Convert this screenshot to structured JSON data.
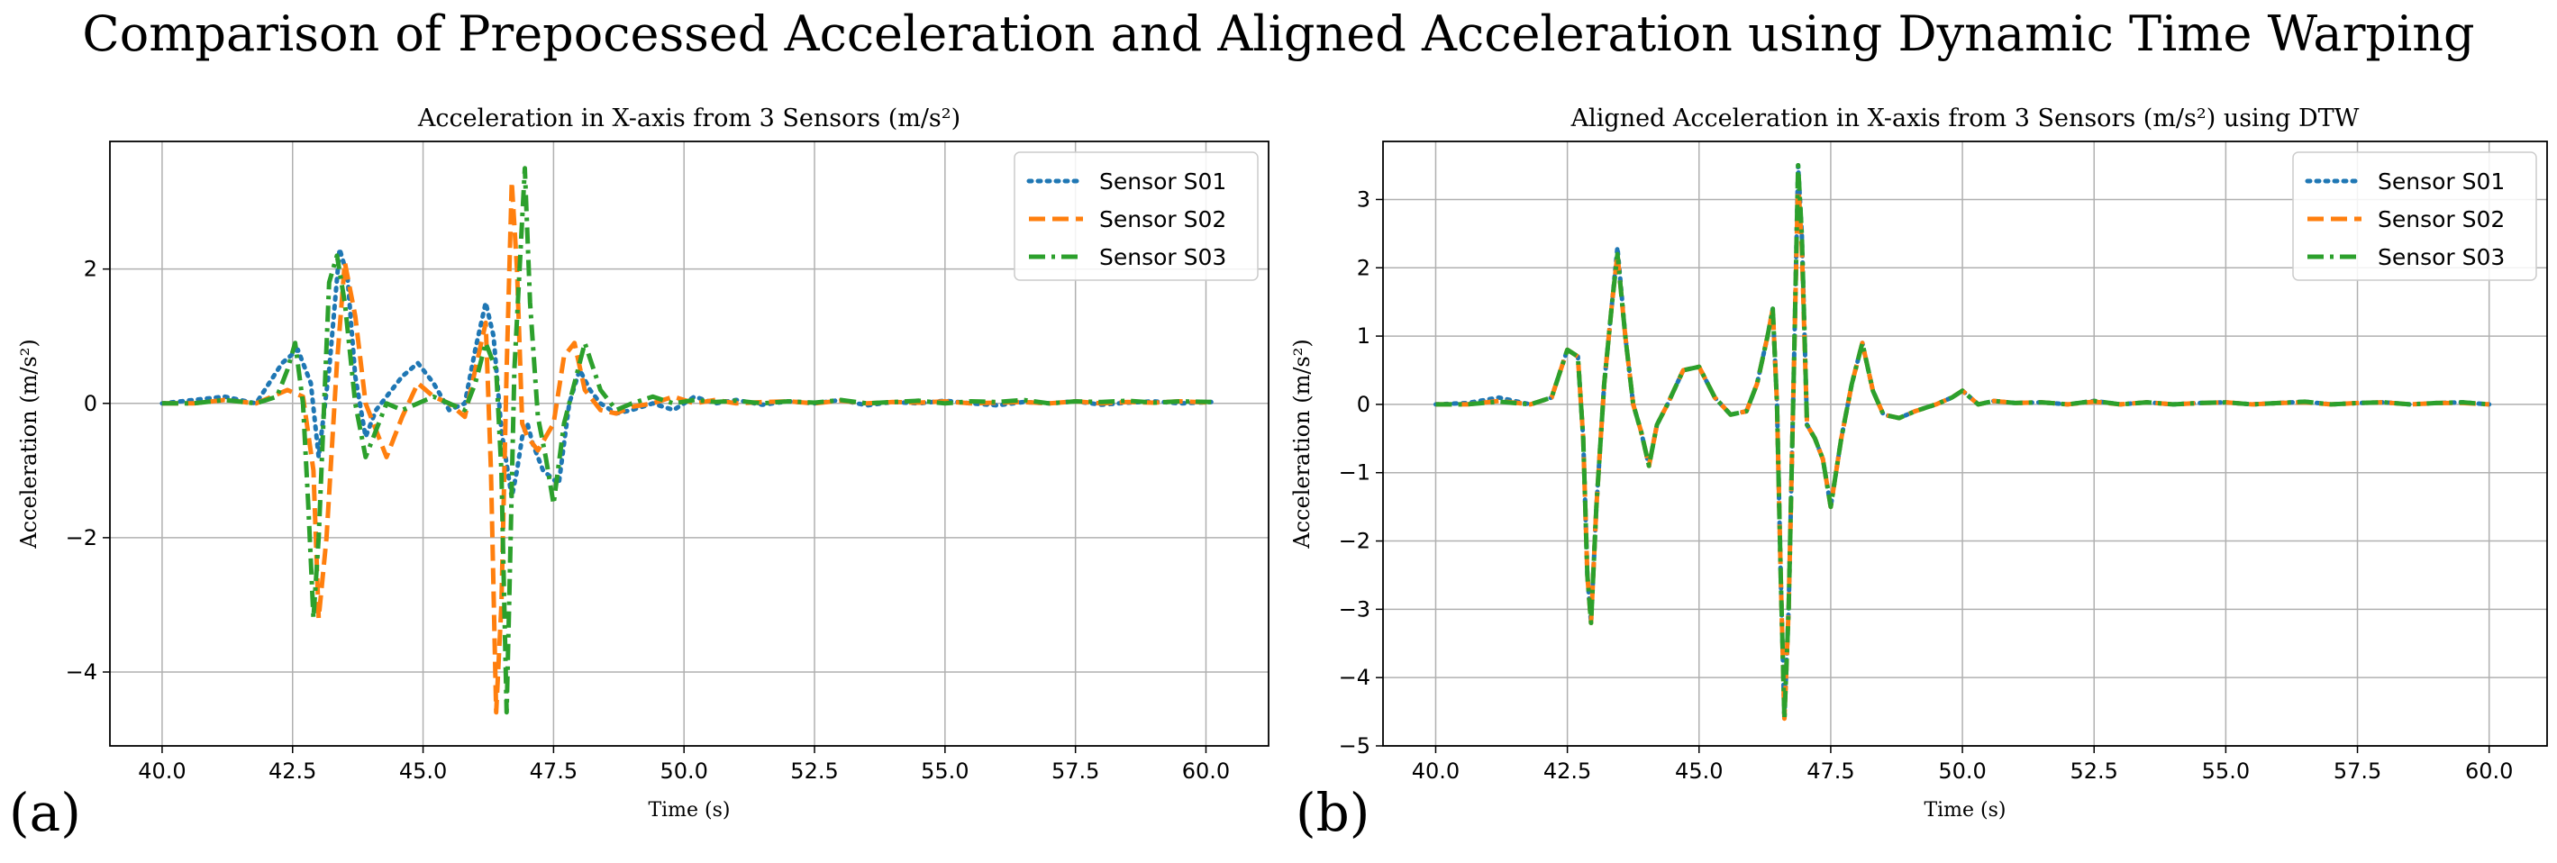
{
  "figure_title": "Comparison of Prepocessed Acceleration and Aligned Acceleration using Dynamic Time Warping",
  "panel_labels": [
    "(a)",
    "(b)"
  ],
  "colors": {
    "S01": "#1f77b4",
    "S02": "#ff7f0e",
    "S03": "#2ca02c",
    "grid": "#b0b0b0"
  },
  "chart_data": [
    {
      "type": "line",
      "title": "Acceleration in X-axis from 3 Sensors (m/s²)",
      "xlabel": "Time (s)",
      "ylabel": "Acceleration (m/s²)",
      "xlim": [
        39.0,
        61.2
      ],
      "ylim": [
        -5.1,
        3.9
      ],
      "xticks": [
        40.0,
        42.5,
        45.0,
        47.5,
        50.0,
        52.5,
        55.0,
        57.5,
        60.0
      ],
      "xtick_labels": [
        "40.0",
        "42.5",
        "45.0",
        "47.5",
        "50.0",
        "52.5",
        "55.0",
        "57.5",
        "60.0"
      ],
      "yticks": [
        -4,
        -2,
        0,
        2
      ],
      "ytick_labels": [
        "−4",
        "−2",
        "0",
        "2"
      ],
      "grid": true,
      "legend_position": "top-right",
      "series": [
        {
          "name": "Sensor S01",
          "style": "dotted",
          "color_key": "S01",
          "x": [
            40.0,
            40.6,
            41.2,
            41.8,
            42.3,
            42.6,
            42.85,
            43.0,
            43.2,
            43.4,
            43.55,
            43.7,
            43.9,
            44.1,
            44.3,
            44.6,
            44.9,
            45.2,
            45.5,
            45.8,
            46.0,
            46.2,
            46.35,
            46.5,
            46.6,
            46.7,
            46.8,
            46.9,
            47.0,
            47.1,
            47.3,
            47.6,
            47.8,
            48.0,
            48.2,
            48.4,
            48.7,
            49.0,
            49.4,
            49.8,
            50.2,
            50.6,
            51.0,
            51.5,
            52.0,
            52.5,
            53.0,
            53.5,
            54.0,
            54.5,
            55.0,
            55.5,
            56.0,
            56.5,
            57.0,
            57.5,
            58.0,
            58.5,
            59.0,
            59.5,
            60.1
          ],
          "values": [
            0.0,
            0.05,
            0.1,
            0.0,
            0.6,
            0.8,
            0.3,
            -0.8,
            0.5,
            2.3,
            1.9,
            0.4,
            -0.5,
            -0.1,
            0.1,
            0.4,
            0.6,
            0.3,
            -0.1,
            0.0,
            0.8,
            1.5,
            1.0,
            -0.4,
            -0.9,
            -1.4,
            -1.0,
            -0.5,
            -0.3,
            -0.6,
            -1.0,
            -1.2,
            0.0,
            0.5,
            0.2,
            0.0,
            -0.15,
            -0.1,
            0.0,
            -0.1,
            0.1,
            0.0,
            0.05,
            -0.02,
            0.03,
            0.0,
            0.05,
            -0.03,
            0.02,
            0.0,
            0.04,
            0.0,
            -0.03,
            0.02,
            0.0,
            0.03,
            -0.02,
            0.01,
            0.03,
            0.0,
            0.02
          ]
        },
        {
          "name": "Sensor S02",
          "style": "dashed",
          "color_key": "S02",
          "x": [
            40.0,
            40.6,
            41.2,
            41.8,
            42.4,
            42.7,
            42.9,
            43.0,
            43.15,
            43.35,
            43.5,
            43.7,
            43.9,
            44.1,
            44.3,
            44.6,
            44.9,
            45.2,
            45.5,
            45.8,
            46.0,
            46.2,
            46.3,
            46.4,
            46.5,
            46.6,
            46.7,
            46.8,
            46.9,
            47.0,
            47.2,
            47.5,
            47.7,
            47.9,
            48.1,
            48.4,
            48.7,
            49.0,
            49.4,
            49.8,
            50.2,
            50.6,
            51.0,
            51.5,
            52.0,
            52.5,
            53.0,
            53.5,
            54.0,
            54.5,
            55.0,
            55.5,
            56.0,
            56.5,
            57.0,
            57.5,
            58.0,
            58.5,
            59.0,
            59.5,
            60.1
          ],
          "values": [
            0.0,
            0.0,
            0.05,
            0.0,
            0.2,
            0.1,
            -1.0,
            -3.2,
            -2.0,
            0.6,
            2.1,
            1.3,
            0.0,
            -0.4,
            -0.8,
            -0.2,
            0.3,
            0.1,
            0.0,
            -0.2,
            0.5,
            1.2,
            -1.0,
            -4.6,
            -3.0,
            0.5,
            3.3,
            2.0,
            -0.3,
            -0.5,
            -0.7,
            -0.3,
            0.7,
            0.9,
            0.2,
            -0.1,
            -0.15,
            -0.05,
            0.0,
            0.1,
            0.0,
            0.05,
            0.0,
            0.02,
            0.03,
            0.0,
            0.04,
            0.0,
            0.02,
            0.01,
            0.03,
            0.0,
            0.01,
            0.02,
            0.0,
            0.03,
            0.0,
            0.02,
            0.01,
            0.03,
            0.01
          ]
        },
        {
          "name": "Sensor S03",
          "style": "dashdot",
          "color_key": "S03",
          "x": [
            40.0,
            40.6,
            41.2,
            41.8,
            42.2,
            42.4,
            42.55,
            42.7,
            42.8,
            42.9,
            43.0,
            43.2,
            43.35,
            43.5,
            43.7,
            43.9,
            44.1,
            44.3,
            44.6,
            44.9,
            45.2,
            45.5,
            45.8,
            46.0,
            46.2,
            46.4,
            46.5,
            46.6,
            46.65,
            46.75,
            46.85,
            46.95,
            47.05,
            47.2,
            47.35,
            47.5,
            47.7,
            47.9,
            48.1,
            48.4,
            48.7,
            49.0,
            49.4,
            49.8,
            50.2,
            50.6,
            51.0,
            51.5,
            52.0,
            52.5,
            53.0,
            53.5,
            54.0,
            54.5,
            55.0,
            55.5,
            56.0,
            56.5,
            57.0,
            57.5,
            58.0,
            58.5,
            59.0,
            59.5,
            60.1
          ],
          "values": [
            0.0,
            0.0,
            0.05,
            0.0,
            0.1,
            0.5,
            0.9,
            0.0,
            -1.5,
            -3.2,
            -2.0,
            1.8,
            2.2,
            1.5,
            0.0,
            -0.8,
            -0.4,
            0.0,
            -0.1,
            0.0,
            0.1,
            0.0,
            -0.1,
            0.3,
            0.9,
            0.5,
            -1.0,
            -4.6,
            -3.0,
            0.5,
            2.0,
            3.5,
            1.5,
            -0.2,
            -0.8,
            -1.5,
            -0.3,
            0.3,
            0.9,
            0.2,
            -0.1,
            0.0,
            0.1,
            0.0,
            0.05,
            0.02,
            0.04,
            0.0,
            0.03,
            0.01,
            0.05,
            0.0,
            0.02,
            0.04,
            0.0,
            0.03,
            0.02,
            0.05,
            0.0,
            0.03,
            0.02,
            0.04,
            0.01,
            0.03,
            0.02
          ]
        }
      ]
    },
    {
      "type": "line",
      "title": "Aligned Acceleration in X-axis from 3 Sensors (m/s²) using DTW",
      "xlabel": "Time (s)",
      "ylabel": "Acceleration (m/s²)",
      "xlim": [
        39.0,
        61.1
      ],
      "ylim": [
        -5.0,
        3.85
      ],
      "xticks": [
        40.0,
        42.5,
        45.0,
        47.5,
        50.0,
        52.5,
        55.0,
        57.5,
        60.0
      ],
      "xtick_labels": [
        "40.0",
        "42.5",
        "45.0",
        "47.5",
        "50.0",
        "52.5",
        "55.0",
        "57.5",
        "60.0"
      ],
      "yticks": [
        -5,
        -4,
        -3,
        -2,
        -1,
        0,
        1,
        2,
        3
      ],
      "ytick_labels": [
        "−5",
        "−4",
        "−3",
        "−2",
        "−1",
        "0",
        "1",
        "2",
        "3"
      ],
      "grid": true,
      "legend_position": "top-right",
      "series": [
        {
          "name": "Sensor S01",
          "style": "dotted",
          "color_key": "S01",
          "x": [
            40.0,
            40.6,
            41.2,
            41.8,
            42.2,
            42.5,
            42.7,
            42.8,
            42.88,
            42.95,
            43.05,
            43.2,
            43.35,
            43.45,
            43.6,
            43.75,
            43.9,
            44.05,
            44.2,
            44.4,
            44.7,
            45.0,
            45.3,
            45.6,
            45.9,
            46.1,
            46.3,
            46.4,
            46.48,
            46.55,
            46.62,
            46.7,
            46.8,
            46.88,
            46.95,
            47.05,
            47.2,
            47.35,
            47.5,
            47.7,
            47.9,
            48.1,
            48.3,
            48.5,
            48.8,
            49.1,
            49.5,
            49.8,
            50.0,
            50.3,
            50.6,
            51.0,
            51.5,
            52.0,
            52.5,
            53.0,
            53.5,
            54.0,
            54.5,
            55.0,
            55.5,
            56.0,
            56.5,
            57.0,
            57.5,
            58.0,
            58.5,
            59.0,
            59.5,
            60.0
          ],
          "values": [
            0.0,
            0.02,
            0.1,
            0.0,
            0.1,
            0.8,
            0.7,
            -0.5,
            -2.5,
            -3.2,
            -1.5,
            0.3,
            1.5,
            2.3,
            1.0,
            0.0,
            -0.4,
            -0.9,
            -0.3,
            0.0,
            0.5,
            0.55,
            0.1,
            -0.15,
            -0.1,
            0.3,
            1.0,
            1.4,
            0.0,
            -2.5,
            -4.6,
            -3.0,
            0.5,
            3.5,
            2.5,
            -0.3,
            -0.5,
            -0.8,
            -1.5,
            -0.5,
            0.3,
            0.9,
            0.2,
            -0.15,
            -0.2,
            -0.1,
            0.0,
            0.1,
            0.2,
            0.0,
            0.05,
            0.02,
            0.03,
            0.0,
            0.05,
            0.0,
            0.03,
            0.0,
            0.02,
            0.03,
            0.0,
            0.02,
            0.04,
            0.0,
            0.02,
            0.03,
            0.0,
            0.02,
            0.03,
            0.0
          ]
        },
        {
          "name": "Sensor S02",
          "style": "dashed",
          "color_key": "S02",
          "x": [
            40.0,
            40.6,
            41.2,
            41.8,
            42.2,
            42.5,
            42.7,
            42.8,
            42.88,
            42.95,
            43.05,
            43.2,
            43.35,
            43.45,
            43.6,
            43.75,
            43.9,
            44.05,
            44.2,
            44.4,
            44.7,
            45.0,
            45.3,
            45.6,
            45.9,
            46.1,
            46.3,
            46.4,
            46.48,
            46.55,
            46.62,
            46.7,
            46.8,
            46.88,
            46.95,
            47.05,
            47.2,
            47.35,
            47.5,
            47.7,
            47.9,
            48.1,
            48.3,
            48.5,
            48.8,
            49.1,
            49.5,
            49.8,
            50.0,
            50.3,
            50.6,
            51.0,
            51.5,
            52.0,
            52.5,
            53.0,
            53.5,
            54.0,
            54.5,
            55.0,
            55.5,
            56.0,
            56.5,
            57.0,
            57.5,
            58.0,
            58.5,
            59.0,
            59.5,
            60.0
          ],
          "values": [
            0.0,
            0.0,
            0.05,
            0.0,
            0.1,
            0.8,
            0.7,
            -0.5,
            -2.5,
            -3.2,
            -1.5,
            0.3,
            1.5,
            2.2,
            1.0,
            0.0,
            -0.4,
            -0.9,
            -0.3,
            0.0,
            0.5,
            0.55,
            0.1,
            -0.15,
            -0.1,
            0.3,
            1.0,
            1.4,
            0.0,
            -2.5,
            -4.6,
            -3.0,
            0.5,
            3.3,
            2.3,
            -0.3,
            -0.5,
            -0.8,
            -1.5,
            -0.5,
            0.3,
            0.9,
            0.2,
            -0.15,
            -0.2,
            -0.1,
            0.0,
            0.1,
            0.2,
            0.0,
            0.05,
            0.02,
            0.03,
            0.0,
            0.04,
            0.0,
            0.03,
            0.0,
            0.02,
            0.03,
            0.0,
            0.02,
            0.03,
            0.0,
            0.02,
            0.03,
            0.0,
            0.02,
            0.02,
            0.0
          ]
        },
        {
          "name": "Sensor S03",
          "style": "dashdot",
          "color_key": "S03",
          "x": [
            40.0,
            40.6,
            41.2,
            41.8,
            42.2,
            42.5,
            42.7,
            42.8,
            42.88,
            42.95,
            43.05,
            43.2,
            43.35,
            43.45,
            43.6,
            43.75,
            43.9,
            44.05,
            44.2,
            44.4,
            44.7,
            45.0,
            45.3,
            45.6,
            45.9,
            46.1,
            46.3,
            46.4,
            46.48,
            46.55,
            46.62,
            46.7,
            46.8,
            46.88,
            46.95,
            47.05,
            47.2,
            47.35,
            47.5,
            47.7,
            47.9,
            48.1,
            48.3,
            48.5,
            48.8,
            49.1,
            49.5,
            49.8,
            50.0,
            50.3,
            50.6,
            51.0,
            51.5,
            52.0,
            52.5,
            53.0,
            53.5,
            54.0,
            54.5,
            55.0,
            55.5,
            56.0,
            56.5,
            57.0,
            57.5,
            58.0,
            58.5,
            59.0,
            59.5,
            60.0
          ],
          "values": [
            0.0,
            0.0,
            0.04,
            0.0,
            0.1,
            0.8,
            0.7,
            -0.5,
            -2.5,
            -3.2,
            -1.5,
            0.3,
            1.5,
            2.2,
            1.0,
            0.0,
            -0.4,
            -0.9,
            -0.3,
            0.0,
            0.5,
            0.55,
            0.1,
            -0.15,
            -0.1,
            0.3,
            1.0,
            1.4,
            0.0,
            -2.5,
            -4.6,
            -3.0,
            0.5,
            3.5,
            2.5,
            -0.3,
            -0.5,
            -0.8,
            -1.5,
            -0.5,
            0.3,
            0.9,
            0.2,
            -0.15,
            -0.2,
            -0.1,
            0.0,
            0.1,
            0.2,
            0.0,
            0.05,
            0.02,
            0.03,
            0.0,
            0.05,
            0.0,
            0.03,
            0.0,
            0.02,
            0.03,
            0.0,
            0.02,
            0.04,
            0.0,
            0.02,
            0.03,
            0.0,
            0.02,
            0.03,
            0.0
          ]
        }
      ]
    }
  ]
}
